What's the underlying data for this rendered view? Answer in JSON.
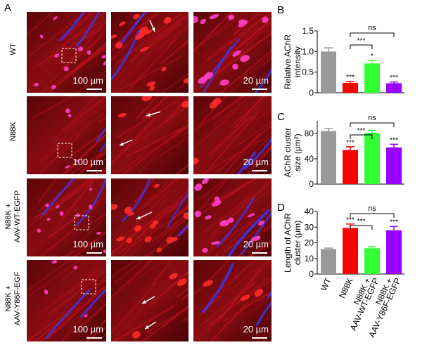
{
  "panel_labels": [
    "A",
    "B",
    "C",
    "D"
  ],
  "rows": [
    {
      "label_lines": [
        "WT"
      ],
      "scale_left": "100 µm",
      "scale_right": "20 µm"
    },
    {
      "label_lines": [
        "N88K"
      ],
      "scale_left": "100 µm",
      "scale_right": "20 µm"
    },
    {
      "label_lines": [
        "N88K +",
        "AAV-WT-EGFP"
      ],
      "scale_left": "100 µm",
      "scale_right": "20 µm"
    },
    {
      "label_lines": [
        "N88K +",
        "AAV-Y86F-EGF"
      ],
      "scale_left": "100 µm",
      "scale_right": "20 µm"
    }
  ],
  "colors": {
    "gray": "#999999",
    "red": "#ff0000",
    "green": "#33ff33",
    "purple": "#9900ff",
    "tissue_red": "#c0121b",
    "nerve_blue": "#3a3aff",
    "magenta": "#ff40c8"
  },
  "chart_data": [
    {
      "panel": "B",
      "type": "bar",
      "ylabel_lines": [
        "Relative AChR",
        "intensity"
      ],
      "ylim": [
        0,
        1.5
      ],
      "yticks": [
        "0",
        "0.5",
        "1.0",
        "1.5"
      ],
      "categories": [
        "WT",
        "N88K",
        "N88K + AAV-WT-EGFP",
        "N88K + AAV-Y86F-EGFP"
      ],
      "values": [
        1.0,
        0.24,
        0.71,
        0.23
      ],
      "errors": [
        0.09,
        0.03,
        0.07,
        0.03
      ],
      "bar_labels": [
        "",
        "***",
        "*",
        "***"
      ],
      "brackets": [
        {
          "label": "***"
        },
        {
          "label": "ns"
        }
      ]
    },
    {
      "panel": "C",
      "type": "bar",
      "ylabel_lines": [
        "AChR cluster",
        "size (μm²)"
      ],
      "ylim": [
        0,
        100
      ],
      "yticks": [
        "0",
        "40",
        "80"
      ],
      "categories": [
        "WT",
        "N88K",
        "N88K + AAV-WT-EGFP",
        "N88K + AAV-Y86F-EGFP"
      ],
      "values": [
        84,
        54,
        81,
        58
      ],
      "errors": [
        4,
        5,
        4,
        5
      ],
      "bar_labels": [
        "",
        "***",
        "",
        "***"
      ],
      "brackets": [
        {
          "label": "***"
        },
        {
          "label": "ns"
        }
      ]
    },
    {
      "panel": "D",
      "type": "bar",
      "ylabel_lines": [
        "Length of AChR",
        "cluster (µm)"
      ],
      "ylim": [
        0,
        40
      ],
      "yticks": [
        "0",
        "10",
        "20",
        "30",
        "40"
      ],
      "categories": [
        "WT",
        "N88K",
        "N88K + AAV-WT-EGFP",
        "N88K + AAV-Y86F-EGFP"
      ],
      "xtick_lines": [
        [
          "WT"
        ],
        [
          "N88K"
        ],
        [
          "N88K +",
          "AAV-WT-EGFP"
        ],
        [
          "N88K +",
          "AAV-Y86F-EGFP"
        ]
      ],
      "values": [
        16,
        29.5,
        16.5,
        28
      ],
      "errors": [
        0.6,
        2.5,
        1.0,
        2.5
      ],
      "bar_labels": [
        "",
        "***",
        "",
        "***"
      ],
      "brackets": [
        {
          "label": "***"
        },
        {
          "label": "ns"
        }
      ]
    }
  ]
}
